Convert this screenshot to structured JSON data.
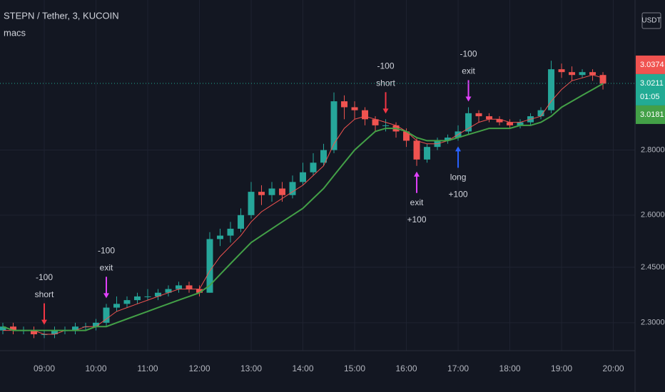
{
  "chart_data": {
    "type": "candlestick",
    "title": "STEPN / Tether, 3, KUCOIN",
    "indicator": "macs",
    "currency": "USDT",
    "log_scale": true,
    "grid": true,
    "up_color": "#26a69a",
    "down_color": "#ef5350",
    "xlim": [
      8.145,
      20.42
    ],
    "ylim": [
      2.228,
      3.322
    ],
    "xticks": [
      {
        "value": 9,
        "label": "09:00"
      },
      {
        "value": 10,
        "label": "10:00"
      },
      {
        "value": 11,
        "label": "11:00"
      },
      {
        "value": 12,
        "label": "12:00"
      },
      {
        "value": 13,
        "label": "13:00"
      },
      {
        "value": 14,
        "label": "14:00"
      },
      {
        "value": 15,
        "label": "15:00"
      },
      {
        "value": 16,
        "label": "16:00"
      },
      {
        "value": 17,
        "label": "17:00"
      },
      {
        "value": 18,
        "label": "18:00"
      },
      {
        "value": 19,
        "label": "19:00"
      },
      {
        "value": 20,
        "label": "20:00"
      }
    ],
    "yticks": [
      {
        "value": 2.3,
        "label": "2.3000"
      },
      {
        "value": 2.45,
        "label": "2.4500"
      },
      {
        "value": 2.6,
        "label": "2.6000"
      },
      {
        "value": 2.8,
        "label": "2.8000"
      }
    ],
    "x": [
      8.2,
      8.4,
      8.6,
      8.8,
      9.0,
      9.2,
      9.4,
      9.6,
      9.8,
      10.0,
      10.2,
      10.4,
      10.6,
      10.8,
      11.0,
      11.2,
      11.4,
      11.6,
      11.8,
      12.0,
      12.2,
      12.4,
      12.6,
      12.8,
      13.0,
      13.2,
      13.4,
      13.6,
      13.8,
      14.0,
      14.2,
      14.4,
      14.6,
      14.8,
      15.0,
      15.2,
      15.4,
      15.6,
      15.8,
      16.0,
      16.2,
      16.4,
      16.6,
      16.8,
      17.0,
      17.2,
      17.4,
      17.6,
      17.8,
      18.0,
      18.2,
      18.4,
      18.6,
      18.8,
      19.0,
      19.2,
      19.4,
      19.6,
      19.8
    ],
    "open": [
      2.28,
      2.29,
      2.28,
      2.28,
      2.27,
      2.27,
      2.28,
      2.28,
      2.29,
      2.29,
      2.3,
      2.34,
      2.35,
      2.36,
      2.37,
      2.37,
      2.38,
      2.39,
      2.4,
      2.39,
      2.38,
      2.53,
      2.54,
      2.56,
      2.6,
      2.67,
      2.66,
      2.68,
      2.66,
      2.7,
      2.73,
      2.76,
      2.8,
      2.96,
      2.94,
      2.93,
      2.9,
      2.88,
      2.88,
      2.86,
      2.83,
      2.77,
      2.81,
      2.83,
      2.84,
      2.86,
      2.92,
      2.91,
      2.9,
      2.89,
      2.88,
      2.89,
      2.91,
      2.93,
      3.07,
      3.06,
      3.05,
      3.06,
      3.05
    ],
    "high": [
      2.3,
      2.3,
      2.29,
      2.29,
      2.28,
      2.29,
      2.29,
      2.3,
      2.3,
      2.31,
      2.35,
      2.37,
      2.37,
      2.38,
      2.39,
      2.39,
      2.4,
      2.41,
      2.41,
      2.4,
      2.55,
      2.56,
      2.58,
      2.62,
      2.7,
      2.69,
      2.7,
      2.7,
      2.72,
      2.76,
      2.79,
      2.82,
      2.99,
      2.98,
      2.96,
      2.94,
      2.91,
      2.9,
      2.89,
      2.87,
      2.84,
      2.82,
      2.84,
      2.85,
      2.88,
      2.94,
      2.93,
      2.92,
      2.91,
      2.9,
      2.9,
      2.92,
      2.94,
      3.1,
      3.09,
      3.08,
      3.07,
      3.07,
      3.06
    ],
    "low": [
      2.27,
      2.27,
      2.27,
      2.26,
      2.26,
      2.26,
      2.27,
      2.27,
      2.28,
      2.28,
      2.29,
      2.33,
      2.34,
      2.35,
      2.36,
      2.36,
      2.37,
      2.38,
      2.38,
      2.37,
      2.38,
      2.51,
      2.52,
      2.55,
      2.59,
      2.63,
      2.64,
      2.64,
      2.65,
      2.69,
      2.72,
      2.75,
      2.79,
      2.9,
      2.9,
      2.88,
      2.86,
      2.86,
      2.84,
      2.81,
      2.75,
      2.76,
      2.8,
      2.82,
      2.83,
      2.85,
      2.89,
      2.89,
      2.88,
      2.87,
      2.87,
      2.88,
      2.9,
      2.92,
      3.04,
      3.03,
      3.04,
      3.03,
      3.0
    ],
    "close": [
      2.29,
      2.28,
      2.28,
      2.27,
      2.27,
      2.28,
      2.28,
      2.29,
      2.29,
      2.3,
      2.34,
      2.35,
      2.36,
      2.37,
      2.37,
      2.38,
      2.39,
      2.4,
      2.39,
      2.38,
      2.53,
      2.54,
      2.56,
      2.6,
      2.67,
      2.66,
      2.68,
      2.66,
      2.7,
      2.73,
      2.76,
      2.8,
      2.96,
      2.94,
      2.93,
      2.9,
      2.88,
      2.88,
      2.86,
      2.83,
      2.77,
      2.81,
      2.83,
      2.84,
      2.86,
      2.92,
      2.91,
      2.9,
      2.89,
      2.88,
      2.89,
      2.91,
      2.93,
      3.07,
      3.06,
      3.05,
      3.06,
      3.05,
      3.02
    ],
    "lines": [
      {
        "color": "#f05350",
        "width": 1,
        "values": [
          2.28,
          2.28,
          2.28,
          2.28,
          2.27,
          2.27,
          2.28,
          2.28,
          2.29,
          2.29,
          2.31,
          2.33,
          2.34,
          2.35,
          2.36,
          2.37,
          2.38,
          2.39,
          2.39,
          2.39,
          2.44,
          2.48,
          2.51,
          2.54,
          2.58,
          2.61,
          2.63,
          2.65,
          2.67,
          2.69,
          2.72,
          2.75,
          2.82,
          2.87,
          2.9,
          2.91,
          2.9,
          2.89,
          2.88,
          2.86,
          2.83,
          2.82,
          2.82,
          2.83,
          2.85,
          2.87,
          2.89,
          2.9,
          2.9,
          2.89,
          2.89,
          2.9,
          2.91,
          2.96,
          3.0,
          3.03,
          3.04,
          3.05,
          3.04
        ]
      },
      {
        "color": "#43a047",
        "width": 2,
        "values": [
          2.29,
          2.28,
          2.28,
          2.28,
          2.28,
          2.28,
          2.28,
          2.28,
          2.28,
          2.29,
          2.29,
          2.3,
          2.31,
          2.32,
          2.33,
          2.34,
          2.35,
          2.36,
          2.37,
          2.38,
          2.4,
          2.43,
          2.46,
          2.49,
          2.52,
          2.54,
          2.56,
          2.58,
          2.6,
          2.62,
          2.65,
          2.68,
          2.72,
          2.76,
          2.8,
          2.83,
          2.86,
          2.87,
          2.87,
          2.86,
          2.84,
          2.83,
          2.83,
          2.83,
          2.84,
          2.85,
          2.86,
          2.87,
          2.87,
          2.87,
          2.88,
          2.88,
          2.89,
          2.91,
          2.94,
          2.96,
          2.98,
          3.0,
          3.02
        ]
      }
    ],
    "signals": [
      {
        "x": 9.0,
        "side": "above",
        "color": "#f23645",
        "lines": [
          "-100",
          "short"
        ]
      },
      {
        "x": 10.2,
        "side": "above",
        "color": "#e040fb",
        "lines": [
          "-100",
          "exit"
        ]
      },
      {
        "x": 15.6,
        "side": "above",
        "color": "#f23645",
        "lines": [
          "-100",
          "short"
        ]
      },
      {
        "x": 16.2,
        "side": "below",
        "color": "#e040fb",
        "lines": [
          "exit",
          "+100"
        ]
      },
      {
        "x": 17.0,
        "side": "below",
        "color": "#2962ff",
        "lines": [
          "long",
          "+100"
        ]
      },
      {
        "x": 17.2,
        "side": "above",
        "color": "#e040fb",
        "lines": [
          "-100",
          "exit"
        ]
      }
    ],
    "price_labels": [
      {
        "value": 3.0374,
        "color": "#f05350"
      },
      {
        "value": 3.0211,
        "color": "#22ab94",
        "countdown": "01:05"
      },
      {
        "value": 3.0181,
        "color": "#43a047"
      }
    ]
  }
}
